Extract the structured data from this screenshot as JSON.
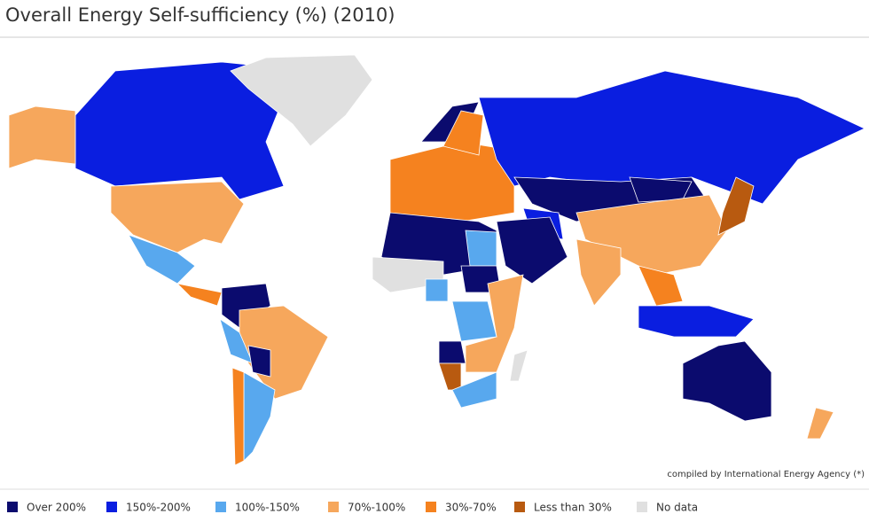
{
  "header": {
    "title": "Overall Energy Self-sufficiency (%) (2010)"
  },
  "map": {
    "credit": "compiled by International Energy Agency (*)"
  },
  "legend": {
    "items": [
      {
        "label": "Over 200%",
        "color": "#0b0b6e"
      },
      {
        "label": "150%-200%",
        "color": "#0a1ee0"
      },
      {
        "label": "100%-150%",
        "color": "#58a8ee"
      },
      {
        "label": "70%-100%",
        "color": "#f6a75c"
      },
      {
        "label": "30%-70%",
        "color": "#f5821f"
      },
      {
        "label": "Less than 30%",
        "color": "#b85a10"
      },
      {
        "label": "No data",
        "color": "#e0e0e0"
      }
    ]
  }
}
